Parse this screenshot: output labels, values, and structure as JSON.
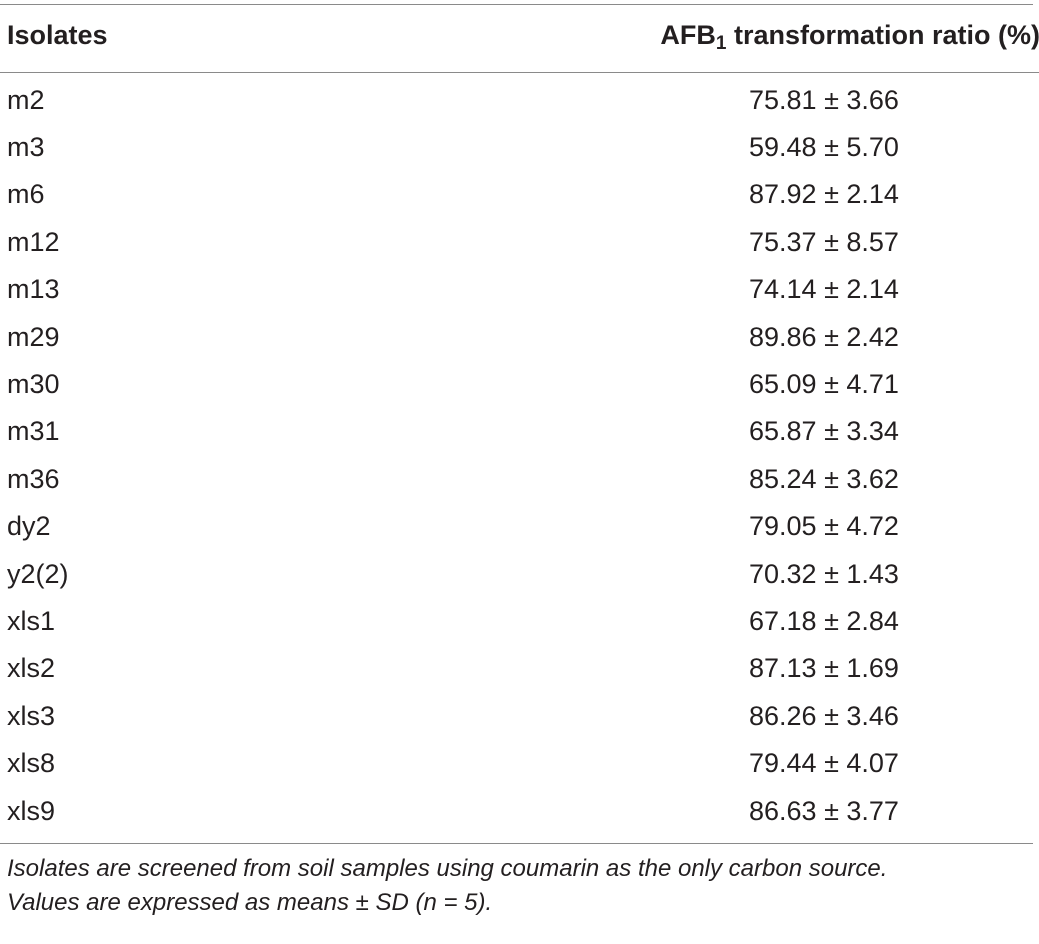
{
  "table": {
    "header": {
      "col1": "Isolates",
      "col2_prefix": "AFB",
      "col2_sub": "1",
      "col2_suffix": " transformation ratio (%)"
    },
    "rows": [
      {
        "isolate": "m2",
        "value": "75.81 ± 3.66"
      },
      {
        "isolate": "m3",
        "value": "59.48 ± 5.70"
      },
      {
        "isolate": "m6",
        "value": "87.92 ± 2.14"
      },
      {
        "isolate": "m12",
        "value": "75.37 ± 8.57"
      },
      {
        "isolate": "m13",
        "value": "74.14 ± 2.14"
      },
      {
        "isolate": "m29",
        "value": "89.86 ± 2.42"
      },
      {
        "isolate": "m30",
        "value": "65.09 ± 4.71"
      },
      {
        "isolate": "m31",
        "value": "65.87 ± 3.34"
      },
      {
        "isolate": "m36",
        "value": "85.24 ± 3.62"
      },
      {
        "isolate": "dy2",
        "value": "79.05 ± 4.72"
      },
      {
        "isolate": "y2(2)",
        "value": "70.32 ± 1.43"
      },
      {
        "isolate": "xls1",
        "value": "67.18 ± 2.84"
      },
      {
        "isolate": "xls2",
        "value": "87.13 ± 1.69"
      },
      {
        "isolate": "xls3",
        "value": "86.26 ± 3.46"
      },
      {
        "isolate": "xls8",
        "value": "79.44 ± 4.07"
      },
      {
        "isolate": "xls9",
        "value": "86.63 ± 3.77"
      }
    ],
    "footnote": {
      "line1": "Isolates are screened from soil samples using coumarin as the only carbon source.",
      "line2": "Values are expressed as means ± SD (n = 5)."
    }
  }
}
